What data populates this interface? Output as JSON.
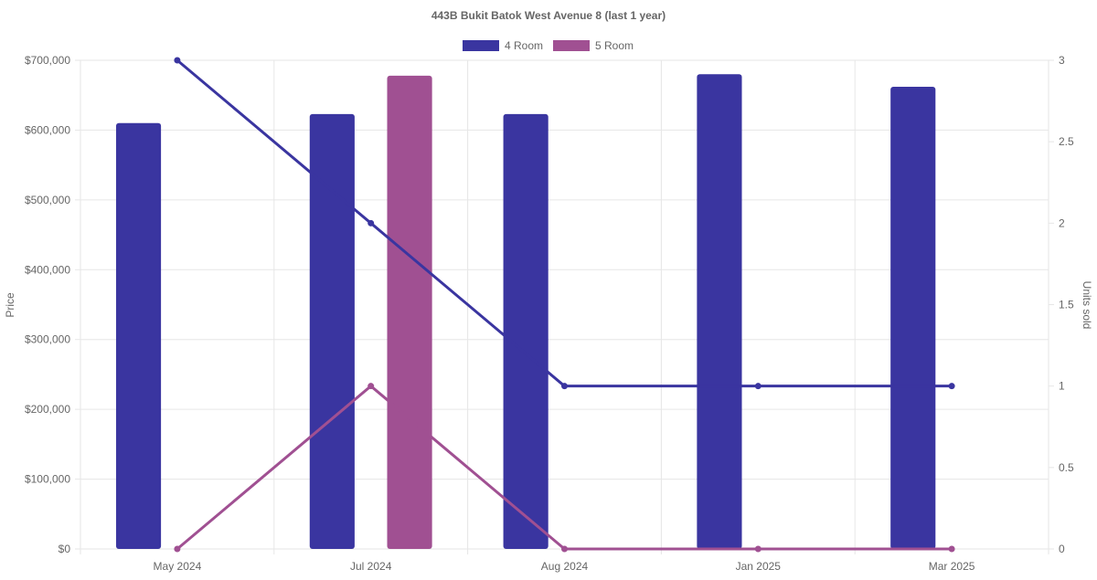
{
  "chart_data": {
    "type": "bar",
    "title": "443B Bukit Batok West Avenue 8 (last 1 year)",
    "categories": [
      "May 2024",
      "Jul 2024",
      "Aug 2024",
      "Jan 2025",
      "Mar 2025"
    ],
    "series": [
      {
        "name": "4 Room",
        "type": "bar",
        "axis": "left",
        "color": "#3a35a0",
        "values": [
          610000,
          623000,
          623000,
          680000,
          662000
        ]
      },
      {
        "name": "5 Room",
        "type": "bar",
        "axis": "left",
        "color": "#a05092",
        "values": [
          null,
          678000,
          null,
          null,
          null
        ]
      },
      {
        "name": "4 Room",
        "type": "line",
        "axis": "right",
        "color": "#3a35a0",
        "values": [
          3,
          2,
          1,
          1,
          1
        ]
      },
      {
        "name": "5 Room",
        "type": "line",
        "axis": "right",
        "color": "#a05092",
        "values": [
          0,
          1,
          0,
          0,
          0
        ]
      }
    ],
    "y_left": {
      "label": "Price",
      "lim": [
        0,
        700000
      ],
      "ticks": [
        "$0",
        "$100,000",
        "$200,000",
        "$300,000",
        "$400,000",
        "$500,000",
        "$600,000",
        "$700,000"
      ]
    },
    "y_right": {
      "label": "Units sold",
      "lim": [
        0,
        3
      ],
      "ticks": [
        "0",
        "0.5",
        "1",
        "1.5",
        "2",
        "2.5",
        "3"
      ]
    },
    "legend": {
      "position": "top-center",
      "entries": [
        {
          "label": "4 Room",
          "color": "#3a35a0"
        },
        {
          "label": "5 Room",
          "color": "#a05092"
        }
      ]
    },
    "grid": true
  }
}
